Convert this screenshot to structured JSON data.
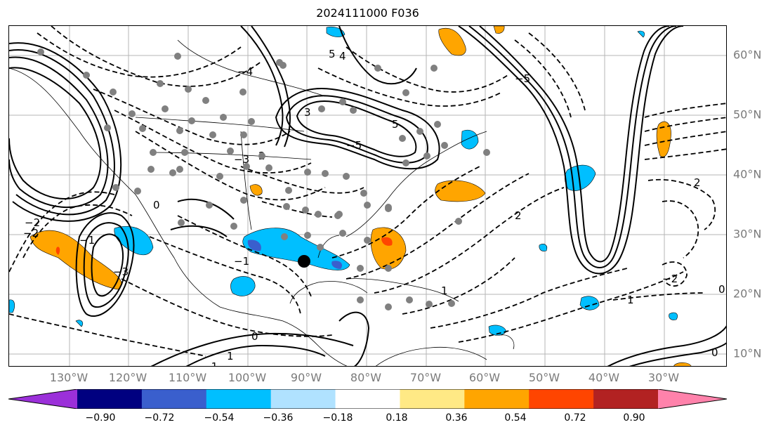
{
  "title": "2024111000 F036",
  "longitude_labels": [
    "130°W",
    "120°W",
    "110°W",
    "100°W",
    "90°W",
    "80°W",
    "70°W",
    "60°W",
    "50°W",
    "40°W",
    "30°W"
  ],
  "latitude_labels": [
    "60°N",
    "50°N",
    "40°N",
    "30°N",
    "20°N",
    "10°N"
  ],
  "colorbar": {
    "tick_labels": [
      "−0.90",
      "−0.72",
      "−0.54",
      "−0.36",
      "−0.18",
      "0.18",
      "0.36",
      "0.54",
      "0.72",
      "0.90"
    ],
    "colors": [
      "#9b30d9",
      "#000080",
      "#3a5fcd",
      "#00bfff",
      "#b0e2ff",
      "#ffffff",
      "#ffe985",
      "#ffa500",
      "#ff4500",
      "#b22222",
      "#ff82ab"
    ]
  },
  "contour_labels": [
    "5",
    "5",
    "4",
    "3",
    "2",
    "2",
    "2",
    "1",
    "1",
    "1",
    "0",
    "0",
    "0",
    "0",
    "−1",
    "−1",
    "−1",
    "−2",
    "−2",
    "−2",
    "−3",
    "−3",
    "−4",
    "−5",
    "−5"
  ],
  "map_colors": {
    "positive_fill": "#ffa500",
    "negative_fill": "#00bfff",
    "station_dots": "#808080",
    "center_marker": "#000000"
  }
}
